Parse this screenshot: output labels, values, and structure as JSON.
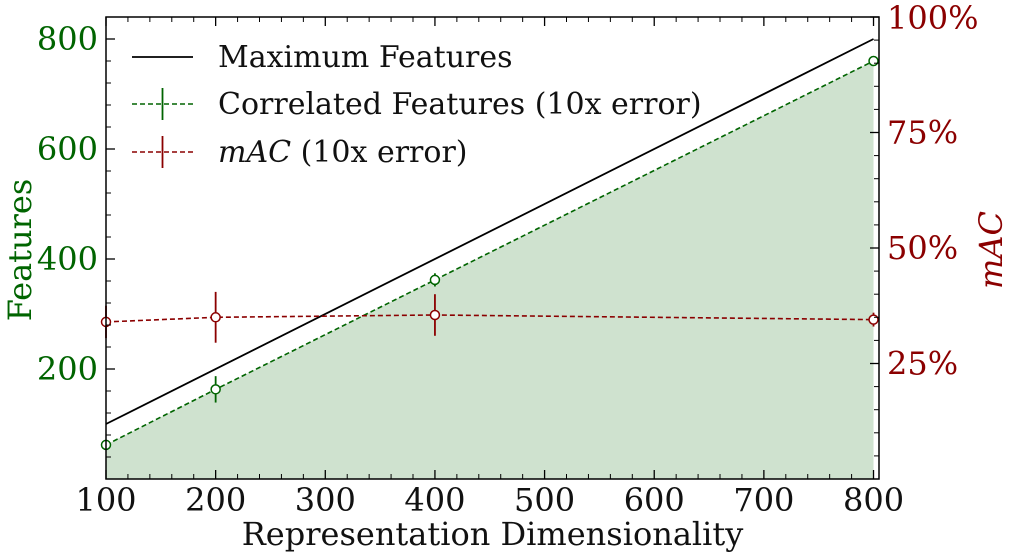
{
  "chart_data": {
    "type": "line",
    "xlabel": "Representation Dimensionality",
    "ylabel_left": "Features",
    "ylabel_right": "mAC",
    "xlim": [
      100,
      805
    ],
    "ylim_left": [
      0,
      840
    ],
    "ylim_right": [
      0,
      100
    ],
    "x_ticks": [
      100,
      200,
      300,
      400,
      500,
      600,
      700,
      800
    ],
    "y_left_ticks": [
      200,
      400,
      600,
      800
    ],
    "y_right_ticks": [
      25,
      50,
      75,
      100
    ],
    "x_tick_labels": [
      "100",
      "200",
      "300",
      "400",
      "500",
      "600",
      "700",
      "800"
    ],
    "y_left_tick_labels": [
      "200",
      "400",
      "600",
      "800"
    ],
    "y_right_tick_labels": [
      "25%",
      "50%",
      "75%",
      "100%"
    ],
    "grid": false,
    "legend_position": "top-left",
    "series": [
      {
        "name": "Maximum Features",
        "axis": "left",
        "style": "solid",
        "color": "#000000",
        "x": [
          100,
          800
        ],
        "y": [
          100,
          800
        ]
      },
      {
        "name": "Correlated Features (10x error)",
        "axis": "left",
        "style": "dashed",
        "color": "#006400",
        "fill": "#cfe2cf",
        "x": [
          100,
          200,
          400,
          800
        ],
        "y": [
          62,
          163,
          362,
          760
        ],
        "error": [
          6,
          24,
          12,
          6
        ]
      },
      {
        "name": "mAC (10x error)",
        "name_italic": "mAC",
        "name_rest": " (10x error)",
        "axis": "right",
        "style": "dashed",
        "color": "#8b0000",
        "x": [
          100,
          200,
          400,
          800
        ],
        "y": [
          34,
          35,
          35.5,
          34.5
        ],
        "error": [
          3.5,
          5.5,
          4.5,
          1.5
        ]
      }
    ],
    "colors": {
      "left_axis": "#006400",
      "right_axis": "#8b0000"
    }
  }
}
